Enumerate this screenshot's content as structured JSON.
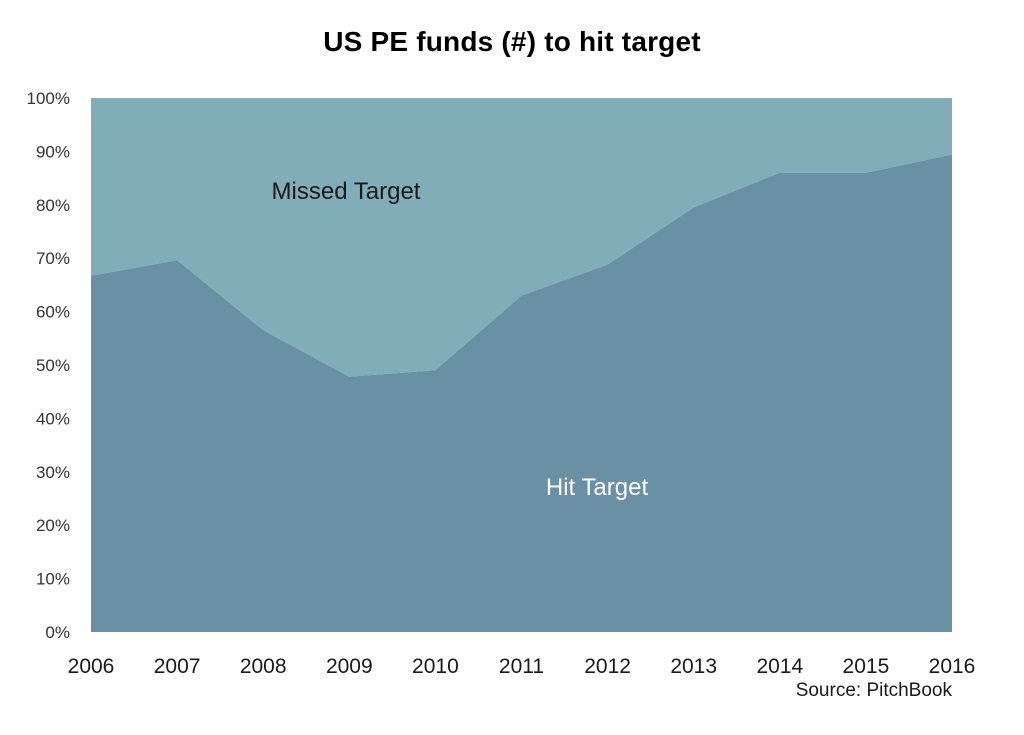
{
  "chart_data": {
    "type": "area",
    "stacked": true,
    "normalized_percent": true,
    "title": "US PE funds (#) to hit target",
    "x": [
      "2006",
      "2007",
      "2008",
      "2009",
      "2010",
      "2011",
      "2012",
      "2013",
      "2014",
      "2015",
      "2016"
    ],
    "series": [
      {
        "name": "Hit Target",
        "color": "#6990a3",
        "label_color": "#ffffff",
        "values": [
          66.7,
          69.6,
          56.5,
          47.8,
          49.0,
          63.0,
          68.8,
          79.5,
          86.0,
          86.0,
          89.4
        ]
      },
      {
        "name": "Missed Target",
        "color": "#80adb7",
        "label_color": "#1a1a1a",
        "values": [
          33.3,
          30.4,
          43.5,
          52.2,
          51.0,
          37.0,
          31.2,
          20.5,
          14.0,
          14.0,
          10.6
        ]
      }
    ],
    "ylim": [
      0,
      100
    ],
    "yticks": [
      "0%",
      "10%",
      "20%",
      "30%",
      "40%",
      "50%",
      "60%",
      "70%",
      "80%",
      "90%",
      "100%"
    ],
    "grid": false,
    "legend": "none (inline labels)",
    "source": "Source: PitchBook"
  }
}
